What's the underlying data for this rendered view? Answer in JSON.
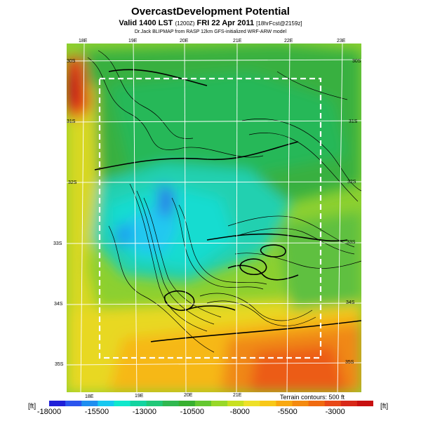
{
  "header": {
    "title": "OvercastDevelopment Potential",
    "subtitle_main": "Valid 1400 LST",
    "subtitle_utc": "(1200Z)",
    "subtitle_date": "FRI 22 Apr 2011",
    "subtitle_fcst": "[18hrFcst@2159z]",
    "credit": "Dr.Jack BLIPMAP from RASP 12km GFS-initialized WRF-ARW model"
  },
  "map": {
    "lon_top": [
      "18E",
      "19E",
      "20E",
      "21E",
      "22E",
      "23E"
    ],
    "lon_bottom": [
      "18E",
      "19E",
      "20E",
      "21E"
    ],
    "lat_left": [
      "30S",
      "31S",
      "32S",
      "33S",
      "34S",
      "35S"
    ],
    "lat_right": [
      "30S",
      "31S",
      "32S",
      "33S",
      "34S",
      "35S"
    ],
    "terrain_note": "Terrain contours: 500 ft"
  },
  "legend": {
    "unit_left": "[ft]",
    "unit_right": "[ft]",
    "labels": [
      "-18000",
      "-15500",
      "-13000",
      "-10500",
      "-8000",
      "-5500",
      "-3000"
    ],
    "range": [
      -18000,
      -1000
    ],
    "colors": [
      "#1f1fd8",
      "#2a55ee",
      "#1e8ef0",
      "#16c8f0",
      "#10e8cc",
      "#12d4a0",
      "#20c878",
      "#30b850",
      "#38b030",
      "#64c830",
      "#98d828",
      "#c8e020",
      "#eee028",
      "#f8c818",
      "#f8a810",
      "#f48a10",
      "#f06a10",
      "#e84818",
      "#d82818",
      "#c81010"
    ]
  }
}
